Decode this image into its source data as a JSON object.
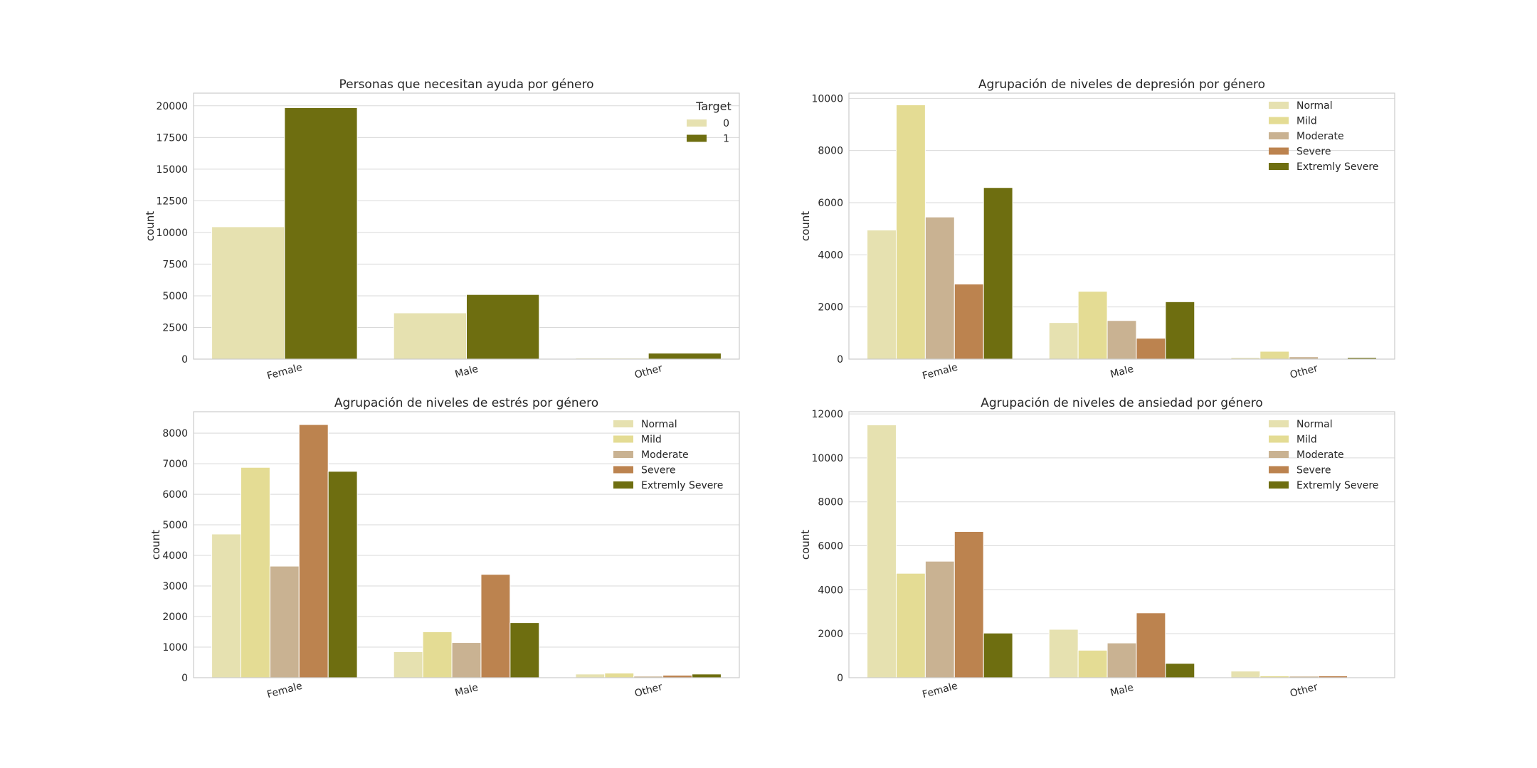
{
  "colors": {
    "grid": "#d9d9d9",
    "frame": "#cccccc",
    "text": "#262626",
    "palette": [
      "#e6e1b0",
      "#e4dc94",
      "#c9b292",
      "#bc834f",
      "#6e6e10"
    ]
  },
  "chart_data": [
    {
      "type": "bar",
      "title": "Personas que necesitan ayuda por género",
      "xlabel": "",
      "ylabel": "count",
      "categories": [
        "Female",
        "Male",
        "Other"
      ],
      "ylim": [
        0,
        21000
      ],
      "yticks": [
        0,
        2500,
        5000,
        7500,
        10000,
        12500,
        15000,
        17500,
        20000
      ],
      "legend_title": "Target",
      "legend_placement": "top-right",
      "grid": true,
      "series": [
        {
          "name": "0",
          "values": [
            10450,
            3650,
            80
          ]
        },
        {
          "name": "1",
          "values": [
            19850,
            5100,
            470
          ]
        }
      ]
    },
    {
      "type": "bar",
      "title": "Agrupación de niveles de depresión por género",
      "xlabel": "",
      "ylabel": "count",
      "categories": [
        "Female",
        "Male",
        "Other"
      ],
      "ylim": [
        0,
        10200
      ],
      "yticks": [
        0,
        2000,
        4000,
        6000,
        8000,
        10000
      ],
      "legend_title": "",
      "legend_placement": "top-right",
      "grid": true,
      "series": [
        {
          "name": "Normal",
          "values": [
            4950,
            1400,
            60
          ]
        },
        {
          "name": "Mild",
          "values": [
            9750,
            2600,
            300
          ]
        },
        {
          "name": "Moderate",
          "values": [
            5450,
            1480,
            90
          ]
        },
        {
          "name": "Severe",
          "values": [
            2880,
            800,
            10
          ]
        },
        {
          "name": "Extremly Severe",
          "values": [
            6580,
            2200,
            60
          ]
        }
      ]
    },
    {
      "type": "bar",
      "title": "Agrupación de niveles de estrés por género",
      "xlabel": "",
      "ylabel": "count",
      "categories": [
        "Female",
        "Male",
        "Other"
      ],
      "ylim": [
        0,
        8700
      ],
      "yticks": [
        0,
        1000,
        2000,
        3000,
        4000,
        5000,
        6000,
        7000,
        8000
      ],
      "legend_title": "",
      "legend_placement": "top-right",
      "grid": true,
      "series": [
        {
          "name": "Normal",
          "values": [
            4700,
            850,
            120
          ]
        },
        {
          "name": "Mild",
          "values": [
            6880,
            1500,
            150
          ]
        },
        {
          "name": "Moderate",
          "values": [
            3650,
            1150,
            50
          ]
        },
        {
          "name": "Severe",
          "values": [
            8280,
            3380,
            80
          ]
        },
        {
          "name": "Extremly Severe",
          "values": [
            6750,
            1800,
            120
          ]
        }
      ]
    },
    {
      "type": "bar",
      "title": "Agrupación de niveles de ansiedad por género",
      "xlabel": "",
      "ylabel": "count",
      "categories": [
        "Female",
        "Male",
        "Other"
      ],
      "ylim": [
        0,
        12100
      ],
      "yticks": [
        0,
        2000,
        4000,
        6000,
        8000,
        10000,
        12000
      ],
      "legend_title": "",
      "legend_placement": "top-right",
      "grid": true,
      "series": [
        {
          "name": "Normal",
          "values": [
            11500,
            2200,
            300
          ]
        },
        {
          "name": "Mild",
          "values": [
            4750,
            1250,
            80
          ]
        },
        {
          "name": "Moderate",
          "values": [
            5300,
            1580,
            70
          ]
        },
        {
          "name": "Severe",
          "values": [
            6650,
            2950,
            80
          ]
        },
        {
          "name": "Extremly Severe",
          "values": [
            2030,
            650,
            10
          ]
        }
      ]
    }
  ]
}
